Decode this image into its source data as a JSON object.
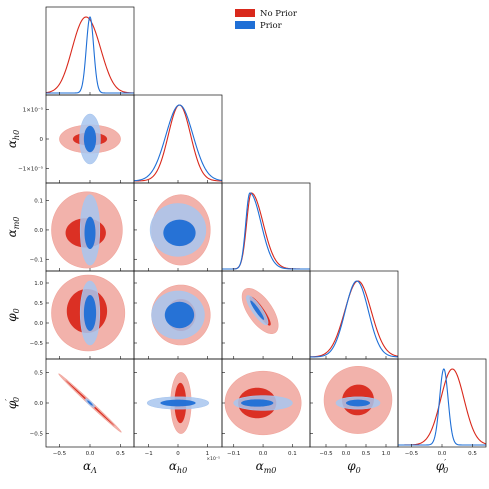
{
  "chart_data": {
    "type": "corner",
    "parameters": [
      {
        "key": "alpha_lambda",
        "symbol": "α",
        "sub": "Λ",
        "sup": "",
        "ticks": [
          -0.5,
          0.0,
          0.5
        ],
        "tick_labels": [
          "−0.5",
          "0.0",
          "0.5"
        ],
        "range": [
          -0.72,
          0.72
        ],
        "multiplier": ""
      },
      {
        "key": "alpha_h0",
        "symbol": "α",
        "sub": "h0",
        "sup": "",
        "ticks": [
          -1,
          0,
          1
        ],
        "tick_labels": [
          "−1",
          "0",
          "1"
        ],
        "range": [
          -1.5,
          1.5
        ],
        "multiplier": "×10⁻⁵",
        "y_tick_labels": [
          "−1×10⁻⁵",
          "0",
          "1×10⁻⁵"
        ]
      },
      {
        "key": "alpha_m0",
        "symbol": "α",
        "sub": "m0",
        "sup": "",
        "ticks": [
          -0.1,
          0.0,
          0.1
        ],
        "tick_labels": [
          "−0.1",
          "0.0",
          "0.1"
        ],
        "range": [
          -0.14,
          0.16
        ],
        "multiplier": ""
      },
      {
        "key": "phi_0",
        "symbol": "φ",
        "sub": "0",
        "sup": "",
        "ticks": [
          -0.5,
          0.0,
          0.5,
          1.0
        ],
        "tick_labels": [
          "−0.5",
          "0.0",
          "0.5",
          "1.0"
        ],
        "range": [
          -0.9,
          1.3
        ],
        "multiplier": ""
      },
      {
        "key": "phi_prime_0",
        "symbol": "φ",
        "sub": "0",
        "sup": "′",
        "ticks": [
          -0.5,
          0.0,
          0.5
        ],
        "tick_labels": [
          "−0.5",
          "0.0",
          "0.5"
        ],
        "range": [
          -0.72,
          0.72
        ],
        "multiplier": ""
      }
    ],
    "series": [
      {
        "name": "No Prior",
        "color_outer": "#f0a59c",
        "color_inner": "#d9291c",
        "line_color": "#d9291c"
      },
      {
        "name": "Prior",
        "color_outer": "#a8c6ee",
        "color_inner": "#1f6fd6",
        "line_color": "#1f6fd6"
      }
    ],
    "marginals": {
      "No Prior": [
        {
          "type": "bimodal",
          "peaks": [
            [
              -0.16,
              0.18
            ],
            [
              0.07,
              0.18
            ]
          ],
          "weights": [
            0.55,
            0.45
          ]
        },
        {
          "type": "gauss",
          "mu": 0.05,
          "sigma": 0.38
        },
        {
          "type": "skew",
          "mode": -0.04,
          "left": 0.016,
          "right": 0.04
        },
        {
          "type": "gauss",
          "mu": 0.3,
          "sigma": 0.33
        },
        {
          "type": "gauss",
          "mu": 0.17,
          "sigma": 0.19
        }
      ],
      "Prior": [
        {
          "type": "gauss",
          "mu": 0.0,
          "sigma": 0.06
        },
        {
          "type": "gauss",
          "mu": 0.05,
          "sigma": 0.46
        },
        {
          "type": "skew",
          "mode": -0.045,
          "left": 0.014,
          "right": 0.038
        },
        {
          "type": "gauss",
          "mu": 0.27,
          "sigma": 0.29
        },
        {
          "type": "gauss",
          "mu": 0.03,
          "sigma": 0.07
        }
      ]
    },
    "contours": {
      "No Prior": {
        "1,0": {
          "outer": {
            "c": [
              0.0,
              0.0
            ],
            "r": [
              0.5,
              0.48
            ],
            "rot": 0
          },
          "inner": {
            "c": [
              0.0,
              0.0
            ],
            "r": [
              0.28,
              0.22
            ],
            "rot": 0
          }
        },
        "2,0": {
          "outer": {
            "c": [
              -0.05,
              0.0
            ],
            "r": [
              0.58,
              0.13
            ],
            "rot": 0
          },
          "inner": {
            "c": [
              -0.07,
              -0.01
            ],
            "r": [
              0.33,
              0.05
            ],
            "rot": 0
          }
        },
        "3,0": {
          "outer": {
            "c": [
              -0.03,
              0.25
            ],
            "r": [
              0.6,
              0.95
            ],
            "rot": 0
          },
          "inner": {
            "c": [
              -0.05,
              0.3
            ],
            "r": [
              0.33,
              0.55
            ],
            "rot": 0
          }
        },
        "4,0": {
          "outer": {
            "c": [
              0.0,
              0.0
            ],
            "r": [
              0.7,
              0.03
            ],
            "rot": -43
          },
          "inner": {
            "c": [
              0.0,
              0.0
            ],
            "r": [
              0.55,
              0.012
            ],
            "rot": -43
          }
        },
        "2,1": {
          "outer": {
            "c": [
              0.1,
              0.0
            ],
            "r": [
              1.0,
              0.12
            ],
            "rot": 0
          },
          "inner": {
            "c": [
              0.1,
              -0.01
            ],
            "r": [
              0.5,
              0.045
            ],
            "rot": 0
          }
        },
        "3,1": {
          "outer": {
            "c": [
              0.1,
              0.2
            ],
            "r": [
              1.0,
              0.75
            ],
            "rot": 0
          },
          "inner": {
            "c": [
              0.1,
              0.2
            ],
            "r": [
              0.5,
              0.4
            ],
            "rot": 0
          }
        },
        "4,1": {
          "outer": {
            "c": [
              0.1,
              0.0
            ],
            "r": [
              0.35,
              0.5
            ],
            "rot": 0
          },
          "inner": {
            "c": [
              0.08,
              0.0
            ],
            "r": [
              0.2,
              0.33
            ],
            "rot": 0
          }
        },
        "3,2": {
          "outer": {
            "c": [
              -0.01,
              0.3
            ],
            "r": [
              0.09,
              0.3
            ],
            "rot": -55
          },
          "inner": {
            "c": [
              -0.01,
              0.3
            ],
            "r": [
              0.06,
              0.1
            ],
            "rot": -55
          }
        },
        "4,2": {
          "outer": {
            "c": [
              0.0,
              0.0
            ],
            "r": [
              0.13,
              0.52
            ],
            "rot": 0
          },
          "inner": {
            "c": [
              -0.02,
              0.0
            ],
            "r": [
              0.065,
              0.25
            ],
            "rot": 0
          }
        },
        "4,3": {
          "outer": {
            "c": [
              0.3,
              0.05
            ],
            "r": [
              0.85,
              0.55
            ],
            "rot": 20
          },
          "inner": {
            "c": [
              0.3,
              0.05
            ],
            "r": [
              0.4,
              0.25
            ],
            "rot": 20
          }
        }
      },
      "Prior": {
        "1,0": {
          "outer": {
            "c": [
              0.0,
              0.0
            ],
            "r": [
              0.17,
              0.85
            ],
            "rot": 0
          },
          "inner": {
            "c": [
              0.0,
              0.0
            ],
            "r": [
              0.1,
              0.45
            ],
            "rot": 0
          }
        },
        "2,0": {
          "outer": {
            "c": [
              0.0,
              0.0
            ],
            "r": [
              0.16,
              0.12
            ],
            "rot": 0
          },
          "inner": {
            "c": [
              0.0,
              -0.01
            ],
            "r": [
              0.09,
              0.055
            ],
            "rot": 0
          }
        },
        "3,0": {
          "outer": {
            "c": [
              0.0,
              0.25
            ],
            "r": [
              0.16,
              0.8
            ],
            "rot": 0
          },
          "inner": {
            "c": [
              0.0,
              0.25
            ],
            "r": [
              0.1,
              0.45
            ],
            "rot": 0
          }
        },
        "4,0": {
          "outer": {
            "c": [
              0.0,
              0.0
            ],
            "r": [
              0.1,
              0.03
            ],
            "rot": -43
          },
          "inner": {
            "c": [
              0.0,
              0.0
            ],
            "r": [
              0.06,
              0.015
            ],
            "rot": -43
          }
        },
        "2,1": {
          "outer": {
            "c": [
              0.0,
              0.0
            ],
            "r": [
              0.95,
              0.09
            ],
            "rot": 0
          },
          "inner": {
            "c": [
              0.05,
              -0.01
            ],
            "r": [
              0.55,
              0.045
            ],
            "rot": 0
          }
        },
        "3,1": {
          "outer": {
            "c": [
              0.0,
              0.2
            ],
            "r": [
              0.9,
              0.6
            ],
            "rot": 0
          },
          "inner": {
            "c": [
              0.05,
              0.2
            ],
            "r": [
              0.5,
              0.33
            ],
            "rot": 0
          }
        },
        "4,1": {
          "outer": {
            "c": [
              0.0,
              0.0
            ],
            "r": [
              1.05,
              0.1
            ],
            "rot": 0
          },
          "inner": {
            "c": [
              0.0,
              0.0
            ],
            "r": [
              0.6,
              0.055
            ],
            "rot": 0
          }
        },
        "3,2": {
          "outer": {
            "c": [
              -0.02,
              0.32
            ],
            "r": [
              0.06,
              0.12
            ],
            "rot": -55
          },
          "inner": {
            "c": [
              -0.02,
              0.32
            ],
            "r": [
              0.04,
              0.05
            ],
            "rot": -55
          }
        },
        "4,2": {
          "outer": {
            "c": [
              0.0,
              0.0
            ],
            "r": [
              0.1,
              0.12
            ],
            "rot": 0
          },
          "inner": {
            "c": [
              -0.02,
              0.0
            ],
            "r": [
              0.055,
              0.06
            ],
            "rot": 0
          }
        },
        "4,3": {
          "outer": {
            "c": [
              0.3,
              0.0
            ],
            "r": [
              0.55,
              0.1
            ],
            "rot": 0
          },
          "inner": {
            "c": [
              0.3,
              0.0
            ],
            "r": [
              0.3,
              0.055
            ],
            "rot": 0
          }
        }
      }
    },
    "legend": {
      "placement": "top-right",
      "entries": [
        "No Prior",
        "Prior"
      ]
    },
    "grid": false
  }
}
